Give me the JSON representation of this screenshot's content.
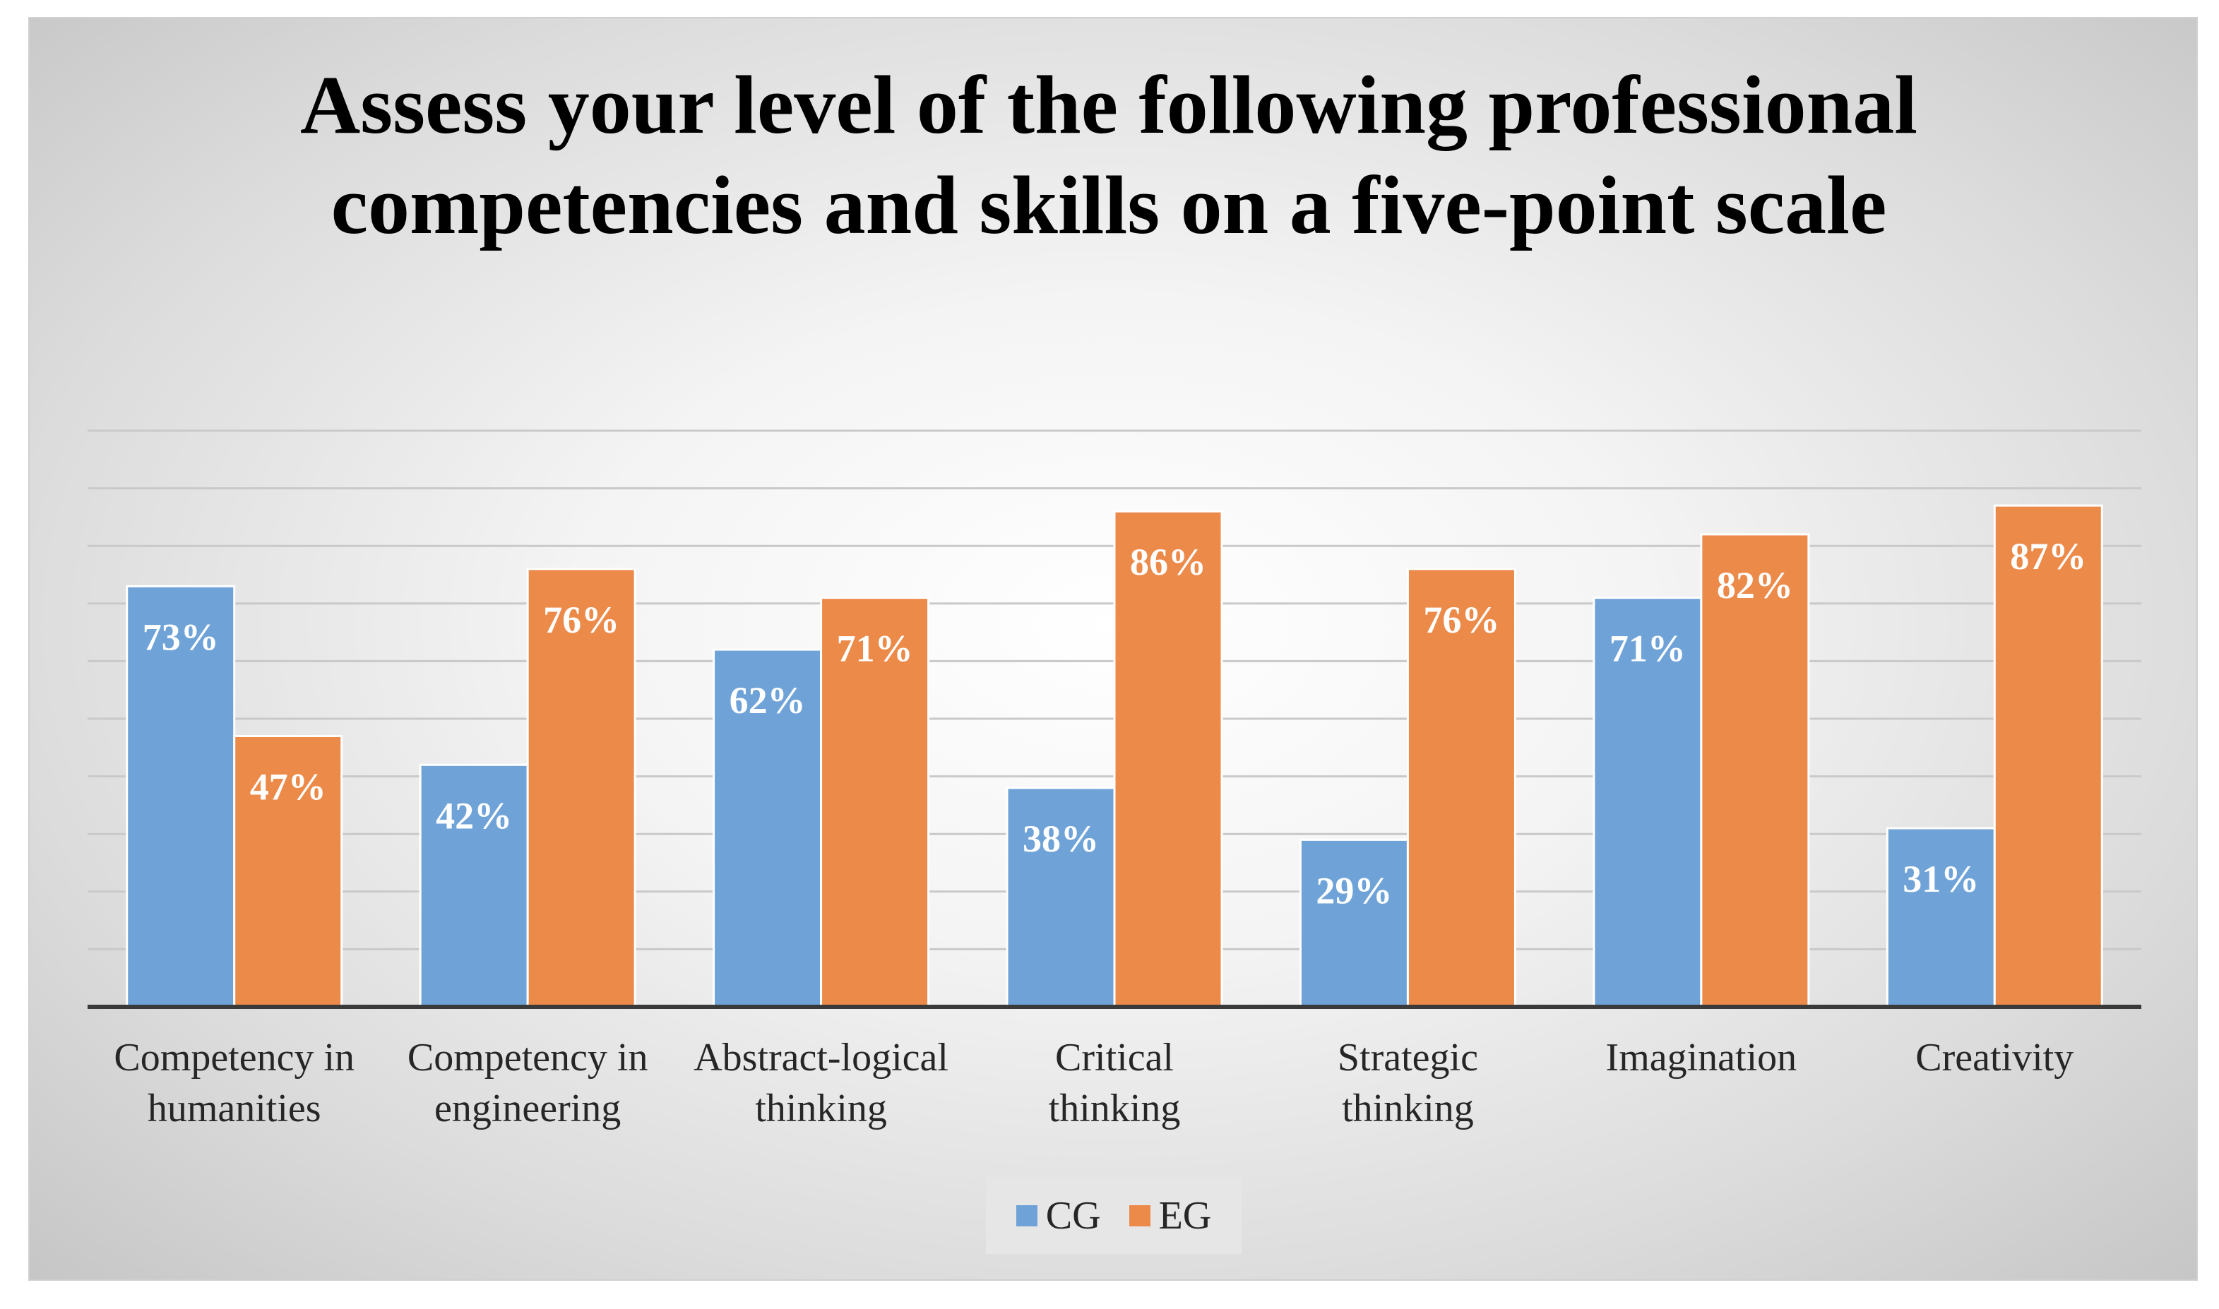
{
  "chart_data": {
    "type": "bar",
    "title": "Assess your level of the following professional competencies and skills on a five-point scale",
    "categories": [
      [
        "Competency in",
        "humanities"
      ],
      [
        "Competency in",
        "engineering"
      ],
      [
        "Abstract-logical",
        "thinking"
      ],
      [
        "Critical",
        "thinking"
      ],
      [
        "Strategic",
        "thinking"
      ],
      [
        "Imagination"
      ],
      [
        "Creativity"
      ]
    ],
    "series": [
      {
        "name": "CG",
        "color": "#6fa3d8",
        "values": [
          73,
          42,
          62,
          38,
          29,
          71,
          31
        ],
        "labels": [
          "73%",
          "42%",
          "62%",
          "38%",
          "29%",
          "71%",
          "31%"
        ]
      },
      {
        "name": "EG",
        "color": "#ec8a4a",
        "values": [
          47,
          76,
          71,
          86,
          76,
          82,
          87
        ],
        "labels": [
          "47%",
          "76%",
          "71%",
          "86%",
          "76%",
          "82%",
          "87%"
        ]
      }
    ],
    "xlabel": "",
    "ylabel": "",
    "ylim": [
      0,
      100
    ],
    "grid": true,
    "legend": "bottom-center",
    "value_axis_labels_shown": false
  }
}
